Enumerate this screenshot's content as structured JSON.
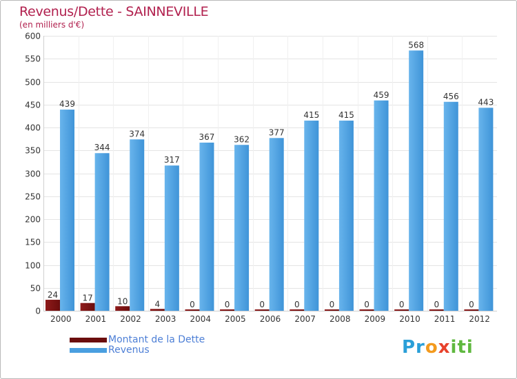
{
  "chart_data": {
    "type": "bar",
    "title": "Revenus/Dette - SAINNEVILLE",
    "subtitle": "(en milliers d'€)",
    "categories": [
      "2000",
      "2001",
      "2002",
      "2003",
      "2004",
      "2005",
      "2006",
      "2007",
      "2008",
      "2009",
      "2010",
      "2011",
      "2012"
    ],
    "series": [
      {
        "name": "Montant de la Dette",
        "color": "#7a1010",
        "values": [
          24,
          17,
          10,
          4,
          0,
          0,
          0,
          0,
          0,
          0,
          0,
          0,
          0
        ]
      },
      {
        "name": "Revenus",
        "color": "#4a9fe0",
        "values": [
          439,
          344,
          374,
          317,
          367,
          362,
          377,
          415,
          415,
          459,
          568,
          456,
          443
        ]
      }
    ],
    "ylim": [
      0,
      600
    ],
    "yticks": [
      0,
      50,
      100,
      150,
      200,
      250,
      300,
      350,
      400,
      450,
      500,
      550,
      600
    ],
    "grid": true,
    "legend": "bottom-left"
  },
  "logo": {
    "text": "Proxiti"
  }
}
